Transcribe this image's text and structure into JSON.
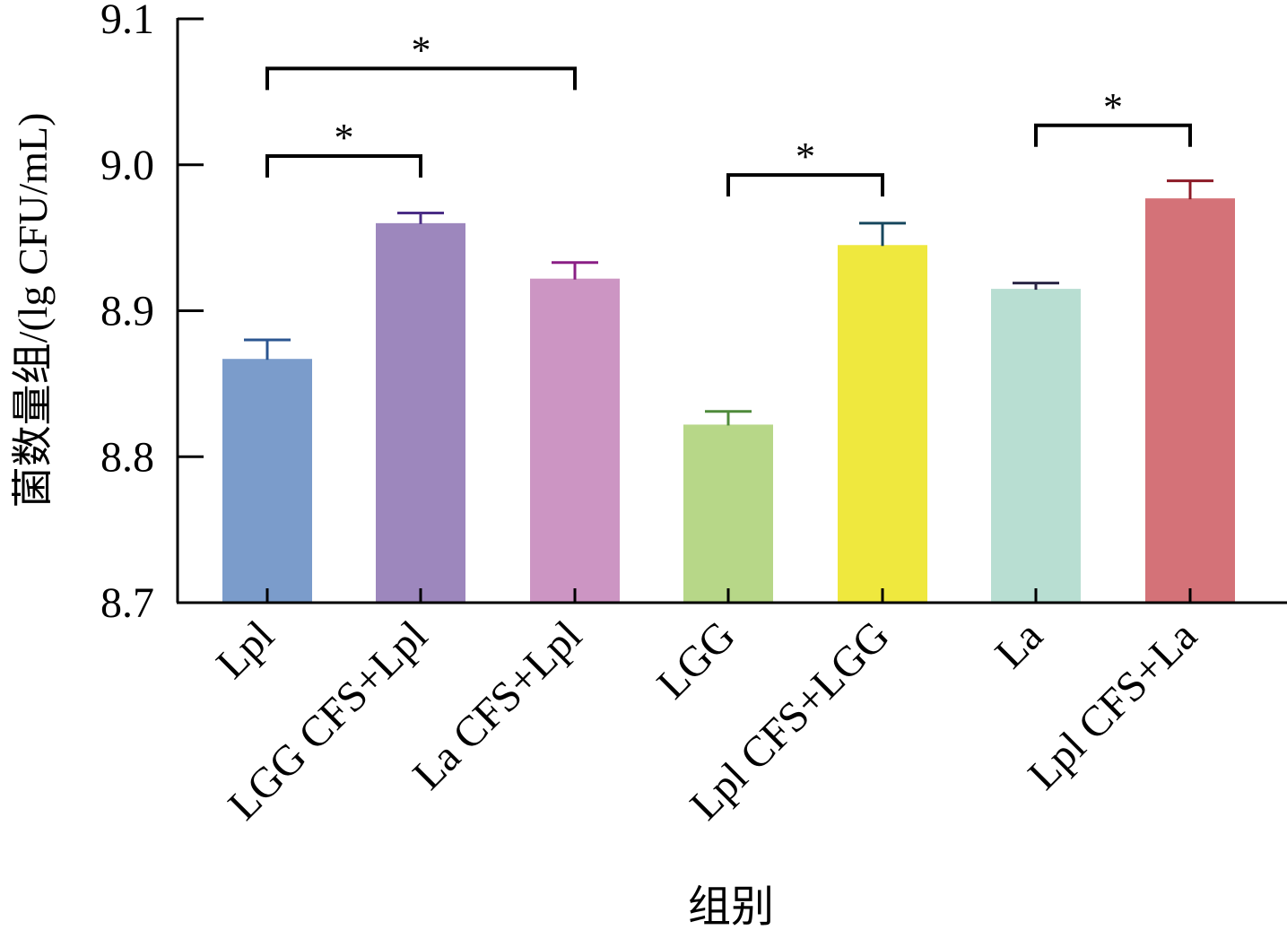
{
  "chart_data": {
    "type": "bar",
    "title": "",
    "xlabel": "组别",
    "ylabel": "菌数量组/(lg CFU/mL)",
    "ylim": [
      8.7,
      9.1
    ],
    "yticks": [
      "8.7",
      "8.8",
      "8.9",
      "9.0",
      "9.1"
    ],
    "ytick_values": [
      8.7,
      8.8,
      8.9,
      9.0,
      9.1
    ],
    "grid": false,
    "legend": "none",
    "categories": [
      "Lpl",
      "LGG CFS+Lpl",
      "La CFS+Lpl",
      "LGG",
      "Lpl CFS+LGG",
      "La",
      "Lpl CFS+La"
    ],
    "values": [
      8.867,
      8.96,
      8.922,
      8.822,
      8.945,
      8.915,
      8.977
    ],
    "errors": [
      0.013,
      0.007,
      0.011,
      0.009,
      0.015,
      0.004,
      0.012
    ],
    "colors": [
      "#7b9ccb",
      "#9d87bd",
      "#cc95c3",
      "#b7d788",
      "#efe83e",
      "#b8ded2",
      "#d47278"
    ],
    "error_colors": [
      "#2b5590",
      "#4b2e86",
      "#8a1f85",
      "#4e8a3a",
      "#17475e",
      "#2a2645",
      "#8c1a26"
    ],
    "significance": [
      {
        "from": 0,
        "to": 1,
        "label": "*",
        "level": 9.006
      },
      {
        "from": 0,
        "to": 2,
        "label": "*",
        "level": 9.066
      },
      {
        "from": 3,
        "to": 4,
        "label": "*",
        "level": 8.993
      },
      {
        "from": 5,
        "to": 6,
        "label": "*",
        "level": 9.027
      }
    ]
  }
}
